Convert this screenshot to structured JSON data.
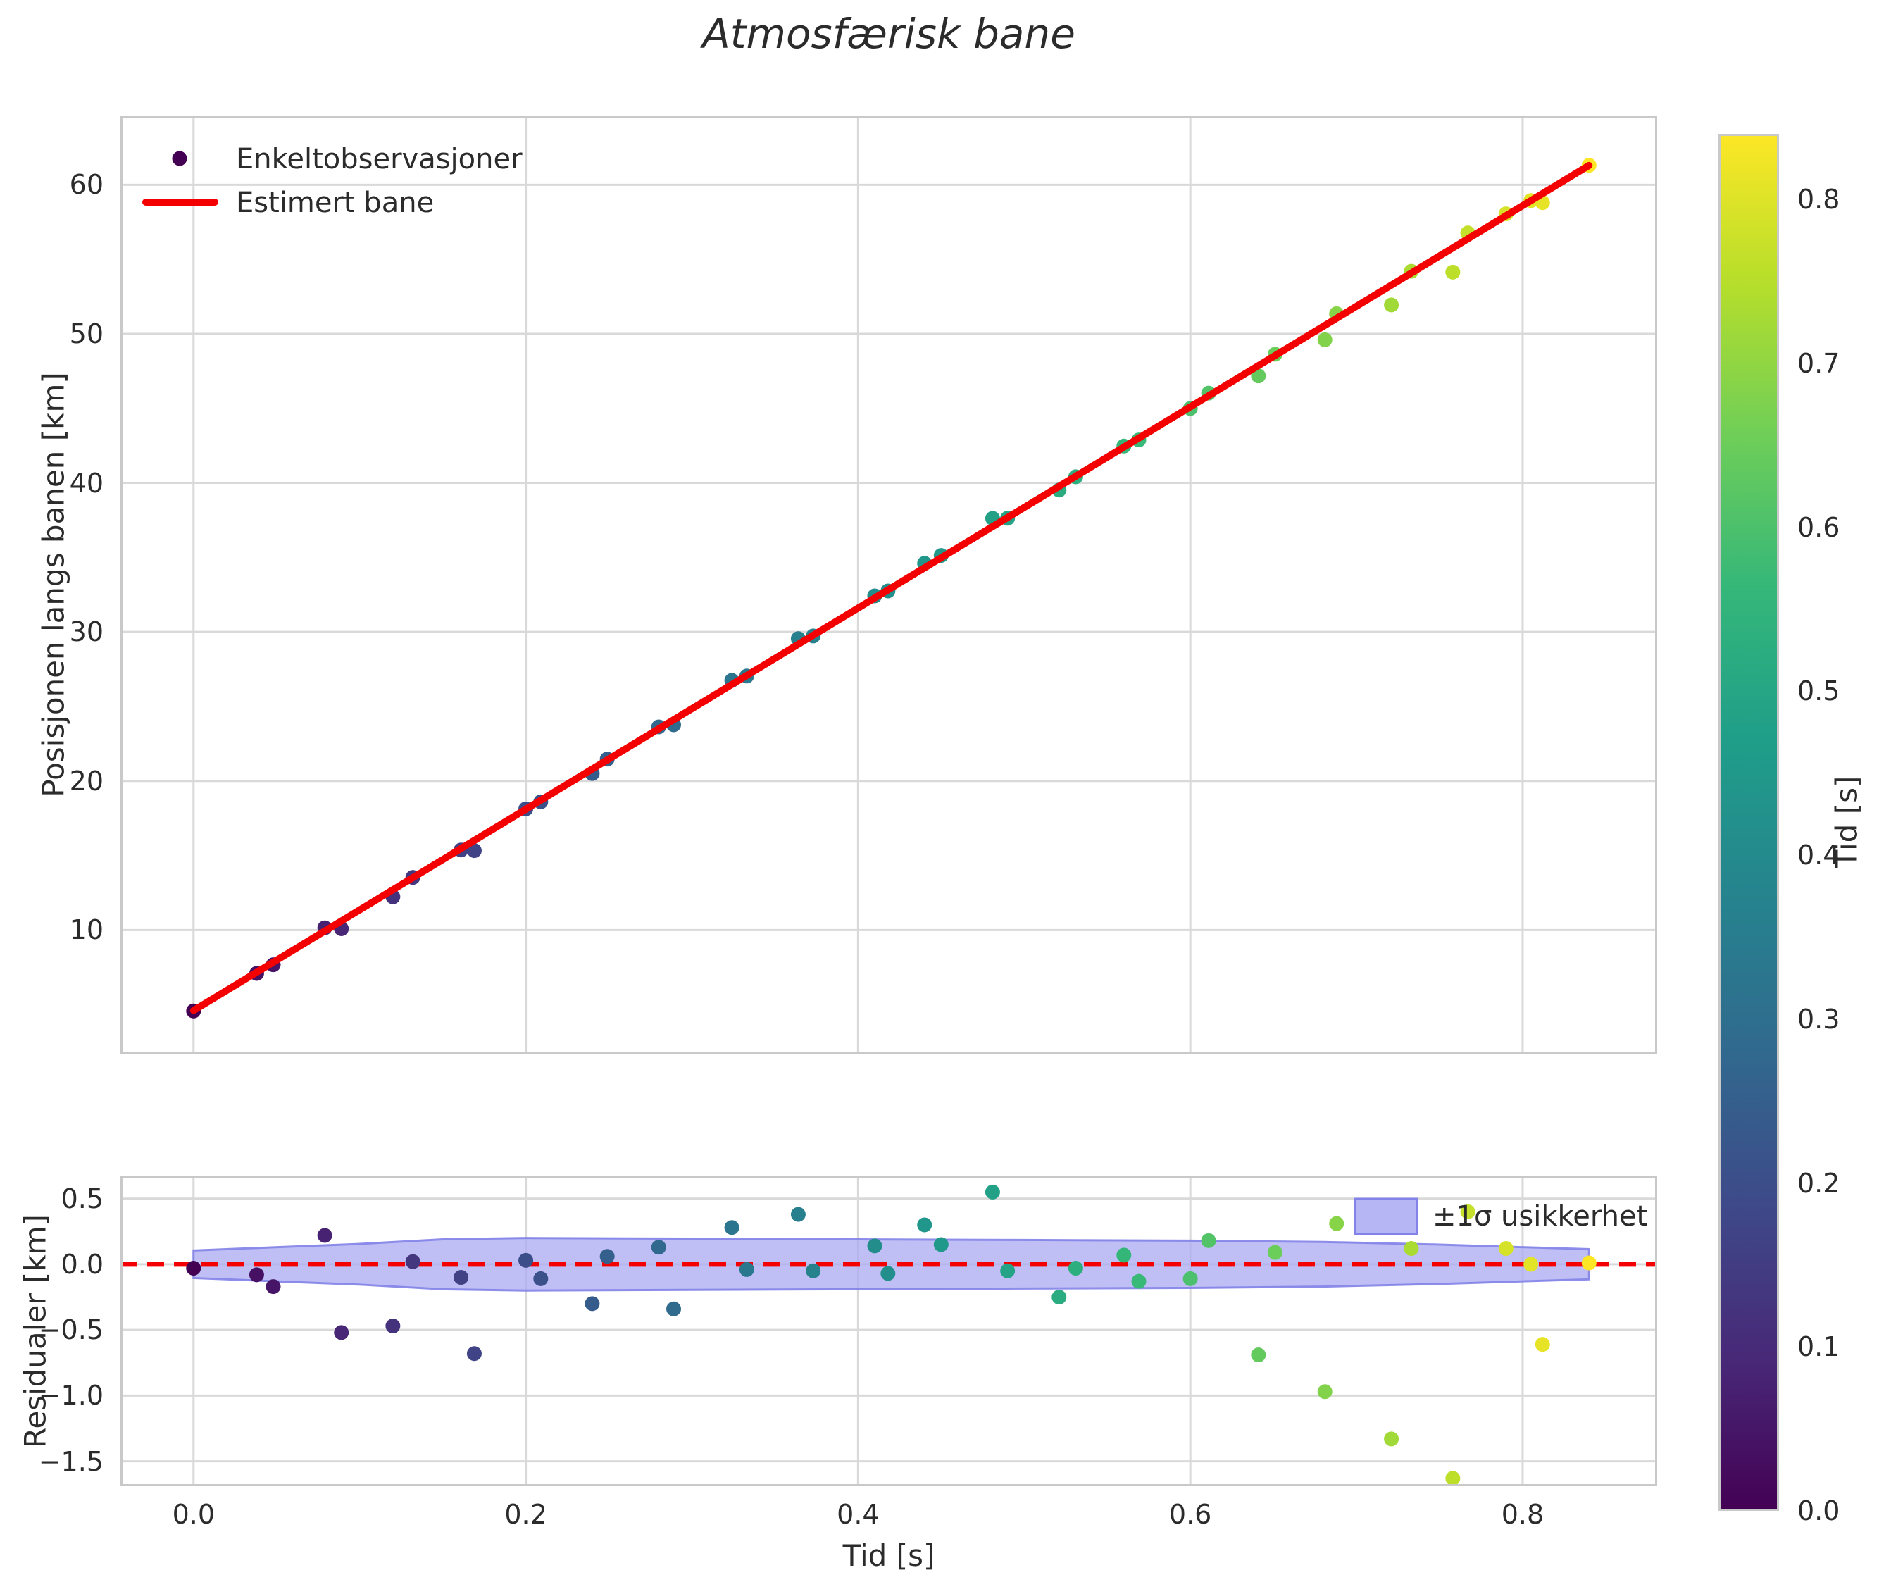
{
  "title": "Atmosfærisk bane",
  "main_plot": {
    "ylabel": "Posisjonen langs banen [km]",
    "legend": {
      "observations": "Enkeltobservasjoner",
      "fit": "Estimert bane"
    }
  },
  "residual_plot": {
    "ylabel": "Residualer [km]",
    "xlabel": "Tid [s]",
    "legend": {
      "band": "±1σ usikkerhet"
    }
  },
  "colorbar": {
    "label": "Tid [s]",
    "vmin": 0.0,
    "vmax": 0.84,
    "ticks": [
      0.0,
      0.1,
      0.2,
      0.3,
      0.4,
      0.5,
      0.6,
      0.7,
      0.8
    ]
  },
  "colors": {
    "fit_line": "#f40000",
    "zero_line": "#f40000",
    "band_fill": "#a9a9f2",
    "band_edge": "#8282e8",
    "grid": "#d9d9d9",
    "spine": "#c9c9c9",
    "text": "#2b2b2b",
    "colormap": "viridis"
  },
  "chart_data": [
    {
      "id": "trajectory",
      "type": "scatter",
      "title": "Atmosfærisk bane",
      "xlabel": "",
      "ylabel": "Posisjonen langs banen [km]",
      "xlim": [
        -0.044,
        0.881
      ],
      "ylim": [
        1.7,
        64.6
      ],
      "xticks": [
        0.0,
        0.2,
        0.4,
        0.6,
        0.8
      ],
      "xtick_labels_visible": false,
      "yticks": [
        10,
        20,
        30,
        40,
        50,
        60
      ],
      "grid": true,
      "legend_position": "upper left",
      "scatter_label": "Enkeltobservasjoner",
      "color_mapping": {
        "by": "x",
        "cmap": "viridis",
        "vmin": 0.0,
        "vmax": 0.84
      },
      "x": [
        0.0,
        0.038,
        0.048,
        0.079,
        0.089,
        0.12,
        0.132,
        0.161,
        0.169,
        0.2,
        0.209,
        0.24,
        0.249,
        0.28,
        0.289,
        0.324,
        0.333,
        0.364,
        0.373,
        0.41,
        0.418,
        0.44,
        0.45,
        0.481,
        0.49,
        0.521,
        0.531,
        0.56,
        0.569,
        0.6,
        0.611,
        0.641,
        0.651,
        0.681,
        0.688,
        0.721,
        0.733,
        0.758,
        0.767,
        0.79,
        0.805,
        0.812,
        0.84
      ],
      "y": [
        4.57,
        7.09,
        7.67,
        10.15,
        10.09,
        12.23,
        13.53,
        15.37,
        15.33,
        18.13,
        18.6,
        20.5,
        21.47,
        23.63,
        23.77,
        26.75,
        27.04,
        29.55,
        29.73,
        32.42,
        32.75,
        34.6,
        35.13,
        37.62,
        37.63,
        39.52,
        40.41,
        42.47,
        42.88,
        44.99,
        46.02,
        47.18,
        48.63,
        49.6,
        51.35,
        51.94,
        54.2,
        54.14,
        56.77,
        58.05,
        58.94,
        58.8,
        61.31
      ],
      "fit_line": {
        "label": "Estimert bane",
        "slope": 67.5,
        "intercept": 4.6,
        "x_start": 0.0,
        "x_end": 0.84,
        "color": "#f40000"
      }
    },
    {
      "id": "residuals",
      "type": "scatter",
      "xlabel": "Tid [s]",
      "ylabel": "Residualer [km]",
      "xlim": [
        -0.044,
        0.881
      ],
      "ylim": [
        -1.69,
        0.67
      ],
      "xticks": [
        0.0,
        0.2,
        0.4,
        0.6,
        0.8
      ],
      "yticks": [
        0.5,
        0.0,
        -0.5,
        -1.0,
        -1.5
      ],
      "grid": true,
      "zero_line": {
        "y": 0.0,
        "style": "dashed",
        "color": "#f40000"
      },
      "x": [
        0.0,
        0.038,
        0.048,
        0.079,
        0.089,
        0.12,
        0.132,
        0.161,
        0.169,
        0.2,
        0.209,
        0.24,
        0.249,
        0.28,
        0.289,
        0.324,
        0.333,
        0.364,
        0.373,
        0.41,
        0.418,
        0.44,
        0.45,
        0.481,
        0.49,
        0.521,
        0.531,
        0.56,
        0.569,
        0.6,
        0.611,
        0.641,
        0.651,
        0.681,
        0.688,
        0.721,
        0.733,
        0.758,
        0.767,
        0.79,
        0.805,
        0.812,
        0.84
      ],
      "y": [
        -0.03,
        -0.08,
        -0.17,
        0.22,
        -0.52,
        -0.47,
        0.02,
        -0.1,
        -0.68,
        0.03,
        -0.11,
        -0.3,
        0.06,
        0.13,
        -0.34,
        0.28,
        -0.04,
        0.38,
        -0.05,
        0.14,
        -0.07,
        0.3,
        0.15,
        0.55,
        -0.05,
        -0.25,
        -0.03,
        0.07,
        -0.13,
        -0.11,
        0.18,
        -0.69,
        0.09,
        -0.97,
        0.31,
        -1.33,
        0.12,
        -1.63,
        0.4,
        0.12,
        0.0,
        -0.61,
        0.01
      ],
      "band": {
        "label": "±1σ usikkerhet",
        "x": [
          0.0,
          0.03,
          0.06,
          0.1,
          0.15,
          0.2,
          0.3,
          0.4,
          0.5,
          0.6,
          0.68,
          0.75,
          0.8,
          0.84
        ],
        "upper": [
          0.105,
          0.12,
          0.135,
          0.155,
          0.19,
          0.2,
          0.195,
          0.19,
          0.185,
          0.18,
          0.17,
          0.15,
          0.13,
          0.115
        ],
        "lower": [
          -0.105,
          -0.12,
          -0.135,
          -0.155,
          -0.19,
          -0.2,
          -0.195,
          -0.19,
          -0.185,
          -0.18,
          -0.17,
          -0.15,
          -0.13,
          -0.115
        ]
      }
    }
  ]
}
